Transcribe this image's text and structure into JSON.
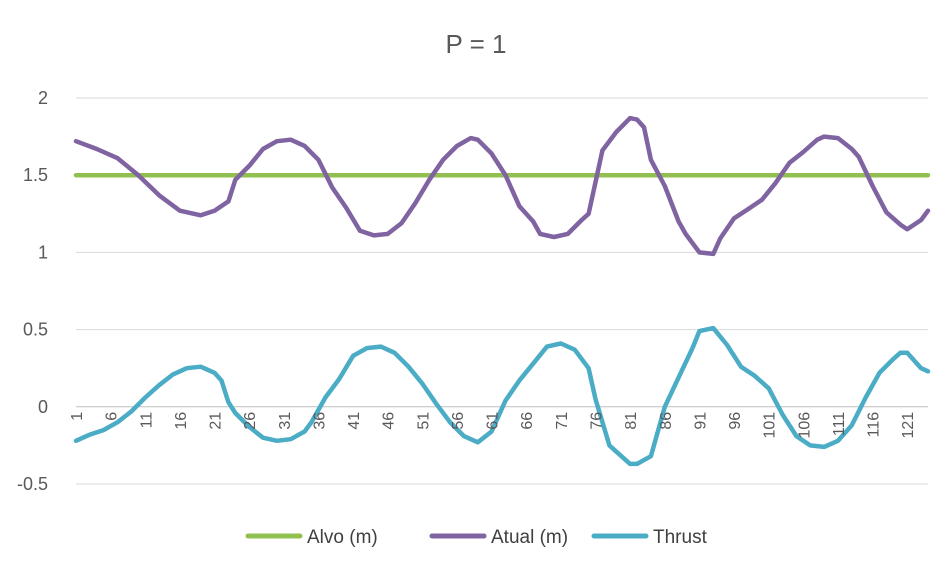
{
  "chart_data": {
    "type": "line",
    "title": "P = 1",
    "xlabel": "",
    "ylabel": "",
    "ylim": [
      -0.5,
      2
    ],
    "yticks": [
      "2",
      "1.5",
      "1",
      "0.5",
      "0",
      "-0.5"
    ],
    "ytick_values": [
      2,
      1.5,
      1,
      0.5,
      0,
      -0.5
    ],
    "x_range": [
      1,
      124
    ],
    "xtick_labels": [
      "1",
      "6",
      "11",
      "16",
      "21",
      "26",
      "31",
      "36",
      "41",
      "46",
      "51",
      "56",
      "61",
      "66",
      "71",
      "76",
      "81",
      "86",
      "91",
      "96",
      "101",
      "106",
      "111",
      "116",
      "121"
    ],
    "grid": true,
    "legend_position": "bottom",
    "series": [
      {
        "name": "Alvo (m)",
        "color": "#92c050",
        "points": [
          [
            1,
            1.5
          ],
          [
            124,
            1.5
          ]
        ]
      },
      {
        "name": "Atual (m)",
        "color": "#8064a2",
        "points": [
          [
            1,
            1.72
          ],
          [
            4,
            1.67
          ],
          [
            7,
            1.61
          ],
          [
            10,
            1.5
          ],
          [
            13,
            1.37
          ],
          [
            16,
            1.27
          ],
          [
            19,
            1.24
          ],
          [
            21,
            1.27
          ],
          [
            23,
            1.33
          ],
          [
            24,
            1.47
          ],
          [
            26,
            1.56
          ],
          [
            28,
            1.67
          ],
          [
            30,
            1.72
          ],
          [
            32,
            1.73
          ],
          [
            34,
            1.69
          ],
          [
            36,
            1.6
          ],
          [
            38,
            1.42
          ],
          [
            40,
            1.29
          ],
          [
            42,
            1.14
          ],
          [
            44,
            1.11
          ],
          [
            46,
            1.12
          ],
          [
            48,
            1.19
          ],
          [
            50,
            1.32
          ],
          [
            52,
            1.47
          ],
          [
            54,
            1.6
          ],
          [
            56,
            1.69
          ],
          [
            58,
            1.74
          ],
          [
            59,
            1.73
          ],
          [
            61,
            1.64
          ],
          [
            63,
            1.5
          ],
          [
            65,
            1.3
          ],
          [
            67,
            1.2
          ],
          [
            68,
            1.12
          ],
          [
            70,
            1.1
          ],
          [
            72,
            1.12
          ],
          [
            74,
            1.21
          ],
          [
            75,
            1.25
          ],
          [
            77,
            1.66
          ],
          [
            79,
            1.78
          ],
          [
            81,
            1.87
          ],
          [
            82,
            1.86
          ],
          [
            83,
            1.81
          ],
          [
            84,
            1.6
          ],
          [
            86,
            1.43
          ],
          [
            88,
            1.2
          ],
          [
            89,
            1.12
          ],
          [
            91,
            1.0
          ],
          [
            93,
            0.99
          ],
          [
            94,
            1.09
          ],
          [
            96,
            1.22
          ],
          [
            98,
            1.28
          ],
          [
            100,
            1.34
          ],
          [
            102,
            1.45
          ],
          [
            104,
            1.58
          ],
          [
            106,
            1.65
          ],
          [
            108,
            1.73
          ],
          [
            109,
            1.75
          ],
          [
            111,
            1.74
          ],
          [
            113,
            1.67
          ],
          [
            114,
            1.62
          ],
          [
            116,
            1.43
          ],
          [
            118,
            1.26
          ],
          [
            120,
            1.18
          ],
          [
            121,
            1.15
          ],
          [
            123,
            1.21
          ],
          [
            124,
            1.27
          ]
        ]
      },
      {
        "name": "Thrust",
        "color": "#4bacc6",
        "points": [
          [
            1,
            -0.22
          ],
          [
            3,
            -0.18
          ],
          [
            5,
            -0.15
          ],
          [
            7,
            -0.1
          ],
          [
            9,
            -0.03
          ],
          [
            11,
            0.06
          ],
          [
            13,
            0.14
          ],
          [
            15,
            0.21
          ],
          [
            17,
            0.25
          ],
          [
            19,
            0.26
          ],
          [
            21,
            0.22
          ],
          [
            22,
            0.17
          ],
          [
            23,
            0.03
          ],
          [
            24,
            -0.04
          ],
          [
            26,
            -0.13
          ],
          [
            28,
            -0.2
          ],
          [
            30,
            -0.22
          ],
          [
            32,
            -0.21
          ],
          [
            34,
            -0.16
          ],
          [
            35,
            -0.1
          ],
          [
            37,
            0.06
          ],
          [
            39,
            0.18
          ],
          [
            41,
            0.33
          ],
          [
            43,
            0.38
          ],
          [
            45,
            0.39
          ],
          [
            47,
            0.35
          ],
          [
            49,
            0.26
          ],
          [
            51,
            0.15
          ],
          [
            53,
            0.02
          ],
          [
            55,
            -0.1
          ],
          [
            57,
            -0.19
          ],
          [
            59,
            -0.23
          ],
          [
            61,
            -0.16
          ],
          [
            63,
            0.04
          ],
          [
            65,
            0.17
          ],
          [
            67,
            0.28
          ],
          [
            69,
            0.39
          ],
          [
            71,
            0.41
          ],
          [
            73,
            0.37
          ],
          [
            75,
            0.25
          ],
          [
            76,
            0.05
          ],
          [
            78,
            -0.25
          ],
          [
            80,
            -0.33
          ],
          [
            81,
            -0.37
          ],
          [
            82,
            -0.37
          ],
          [
            84,
            -0.32
          ],
          [
            86,
            0.0
          ],
          [
            88,
            0.19
          ],
          [
            90,
            0.38
          ],
          [
            91,
            0.49
          ],
          [
            93,
            0.51
          ],
          [
            95,
            0.4
          ],
          [
            97,
            0.26
          ],
          [
            99,
            0.2
          ],
          [
            101,
            0.12
          ],
          [
            103,
            -0.05
          ],
          [
            105,
            -0.19
          ],
          [
            107,
            -0.25
          ],
          [
            109,
            -0.26
          ],
          [
            111,
            -0.22
          ],
          [
            113,
            -0.12
          ],
          [
            115,
            0.06
          ],
          [
            117,
            0.22
          ],
          [
            119,
            0.31
          ],
          [
            120,
            0.35
          ],
          [
            121,
            0.35
          ],
          [
            123,
            0.25
          ],
          [
            124,
            0.23
          ]
        ]
      }
    ]
  }
}
